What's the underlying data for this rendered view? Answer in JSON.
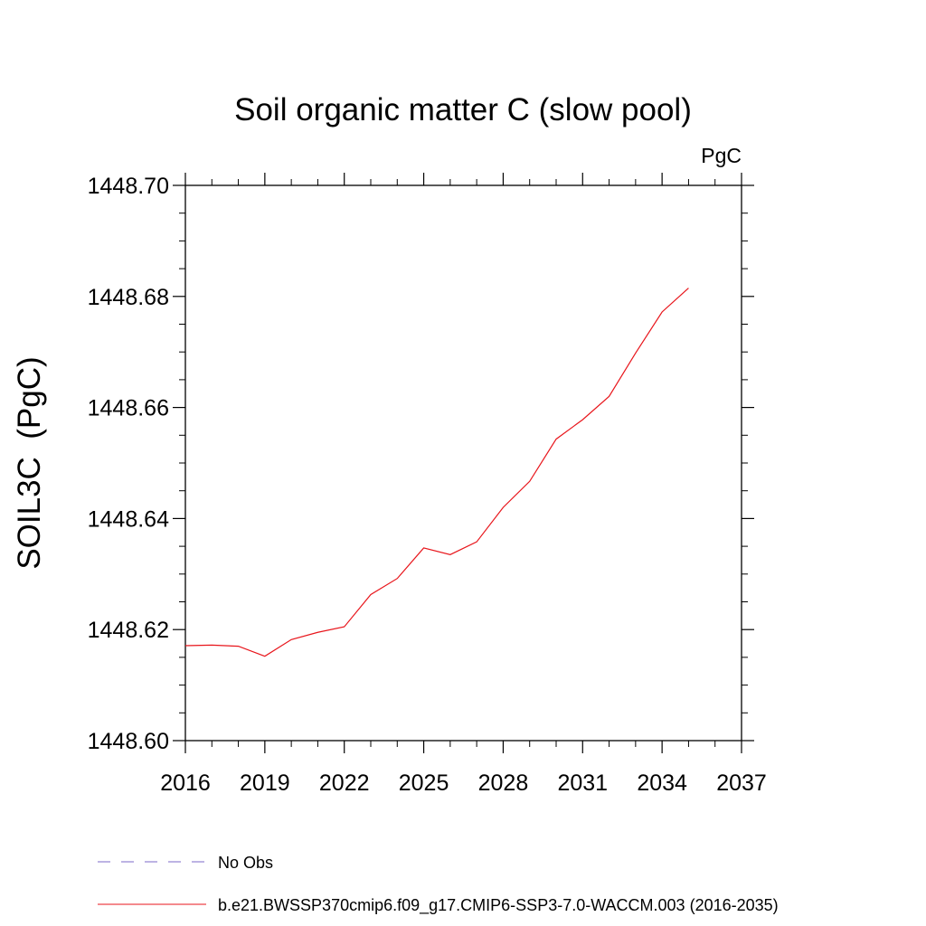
{
  "chart_data": {
    "type": "line",
    "title": "Soil organic matter C (slow pool)",
    "units_label": "PgC",
    "ylabel": "SOIL3C  (PgC)",
    "xlabel": "",
    "xlim": [
      2016,
      2037
    ],
    "ylim": [
      1448.6,
      1448.7
    ],
    "x_ticks": [
      "2016",
      "2019",
      "2022",
      "2025",
      "2028",
      "2031",
      "2034",
      "2037"
    ],
    "y_ticks": [
      "1448.60",
      "1448.62",
      "1448.64",
      "1448.66",
      "1448.68",
      "1448.70"
    ],
    "grid": false,
    "legend_position": "bottom",
    "series": [
      {
        "name": "No Obs",
        "color": "#7b68c8",
        "dash": "dashed",
        "x": [],
        "y": []
      },
      {
        "name": "b.e21.BWSSP370cmip6.f09_g17.CMIP6-SSP3-7.0-WACCM.003 (2016-2035)",
        "color": "#e8151b",
        "dash": "solid",
        "x": [
          2016,
          2017,
          2018,
          2019,
          2020,
          2021,
          2022,
          2023,
          2024,
          2025,
          2026,
          2027,
          2028,
          2029,
          2030,
          2031,
          2032,
          2033,
          2034,
          2035
        ],
        "y": [
          1448.6171,
          1448.6172,
          1448.617,
          1448.6152,
          1448.6182,
          1448.6195,
          1448.6205,
          1448.6263,
          1448.6292,
          1448.6347,
          1448.6335,
          1448.6358,
          1448.642,
          1448.6467,
          1448.6543,
          1448.6578,
          1448.662,
          1448.6698,
          1448.6772,
          1448.6815
        ]
      }
    ]
  }
}
